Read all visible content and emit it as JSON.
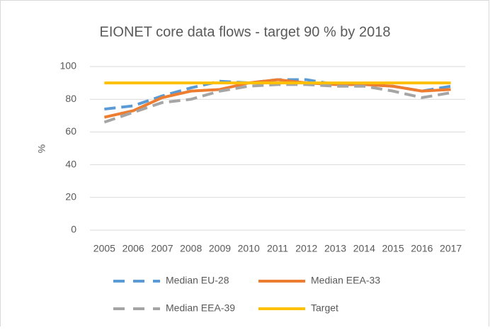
{
  "chart_data": {
    "type": "line",
    "title": "EIONET core data flows - target 90 % by 2018",
    "ylabel": "%",
    "categories": [
      "2005",
      "2006",
      "2007",
      "2008",
      "2009",
      "2010",
      "2011",
      "2012",
      "2013",
      "2014",
      "2015",
      "2016",
      "2017"
    ],
    "series": [
      {
        "name": "Median EU-28",
        "color": "#5b9bd5",
        "dashed": true,
        "values": [
          74,
          76,
          82,
          87,
          91,
          90,
          92,
          92,
          89,
          89,
          88,
          85,
          88
        ]
      },
      {
        "name": "Median EEA-33",
        "color": "#ed7d31",
        "dashed": false,
        "values": [
          69,
          73,
          81,
          85,
          86,
          90,
          92,
          90,
          89,
          89,
          88,
          85,
          86
        ]
      },
      {
        "name": "Median EEA-39",
        "color": "#a5a5a5",
        "dashed": true,
        "values": [
          66,
          72,
          78,
          80,
          85,
          88,
          89,
          89,
          88,
          88,
          85,
          81,
          84
        ]
      },
      {
        "name": "Target",
        "color": "#ffc000",
        "dashed": false,
        "values": [
          90,
          90,
          90,
          90,
          90,
          90,
          90,
          90,
          90,
          90,
          90,
          90,
          90
        ]
      }
    ],
    "ylim": [
      0,
      100
    ],
    "yticks": [
      0,
      20,
      40,
      60,
      80,
      100
    ],
    "grid": true
  }
}
